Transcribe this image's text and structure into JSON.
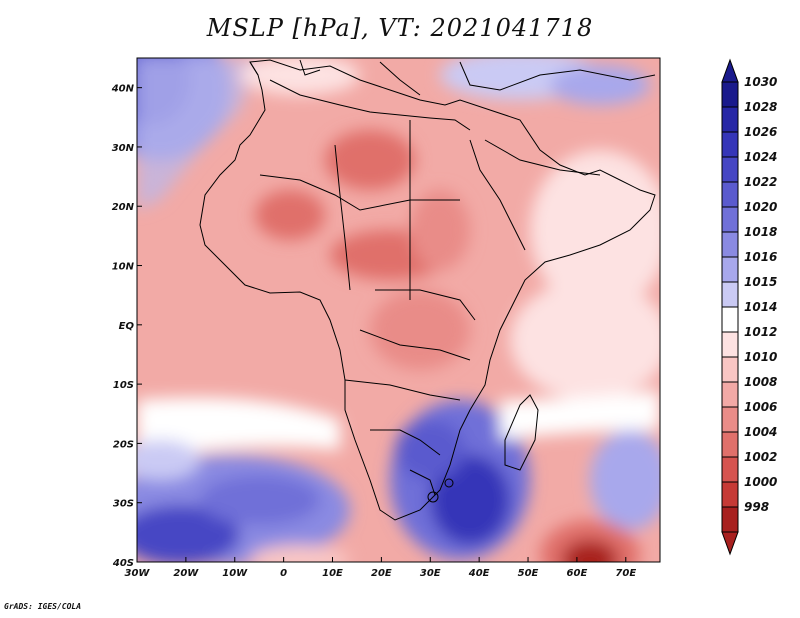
{
  "title": "MSLP [hPa], VT: 2021041718",
  "credit": "GrADS: IGES/COLA",
  "map": {
    "projection": "lat-lon",
    "lon_range": [
      -30,
      77
    ],
    "lat_range": [
      -40,
      45
    ],
    "lon_ticks": [
      {
        "value": -30,
        "label": "30W"
      },
      {
        "value": -20,
        "label": "20W"
      },
      {
        "value": -10,
        "label": "10W"
      },
      {
        "value": 0,
        "label": "0"
      },
      {
        "value": 10,
        "label": "10E"
      },
      {
        "value": 20,
        "label": "20E"
      },
      {
        "value": 30,
        "label": "30E"
      },
      {
        "value": 40,
        "label": "40E"
      },
      {
        "value": 50,
        "label": "50E"
      },
      {
        "value": 60,
        "label": "60E"
      },
      {
        "value": 70,
        "label": "70E"
      }
    ],
    "lat_ticks": [
      {
        "value": -40,
        "label": "40S"
      },
      {
        "value": -30,
        "label": "30S"
      },
      {
        "value": -20,
        "label": "20S"
      },
      {
        "value": -10,
        "label": "10S"
      },
      {
        "value": 0,
        "label": "EQ"
      },
      {
        "value": 10,
        "label": "10N"
      },
      {
        "value": 20,
        "label": "20N"
      },
      {
        "value": 30,
        "label": "30N"
      },
      {
        "value": 40,
        "label": "40N"
      }
    ],
    "features": {
      "high_south_atlantic": "blue",
      "high_south_indian": "blue",
      "low_southern_ocean_60E": "dark-red",
      "sahara_heat_low": "red"
    }
  },
  "colorbar": {
    "levels": [
      {
        "label": "1030",
        "color": "#1a1a8c"
      },
      {
        "label": "1028",
        "color": "#2727a6"
      },
      {
        "label": "1026",
        "color": "#3535b8"
      },
      {
        "label": "1024",
        "color": "#4646c4"
      },
      {
        "label": "1022",
        "color": "#5a5ace"
      },
      {
        "label": "1020",
        "color": "#7070d8"
      },
      {
        "label": "1018",
        "color": "#8a8ae2"
      },
      {
        "label": "1016",
        "color": "#a8a8ec"
      },
      {
        "label": "1015",
        "color": "#cacaf4"
      },
      {
        "label": "1014",
        "color": "#ffffff"
      },
      {
        "label": "1012",
        "color": "#fde2e2"
      },
      {
        "label": "1010",
        "color": "#f9c6c4"
      },
      {
        "label": "1008",
        "color": "#f2a9a6"
      },
      {
        "label": "1006",
        "color": "#e98c88"
      },
      {
        "label": "1004",
        "color": "#e0706b"
      },
      {
        "label": "1002",
        "color": "#d65450"
      },
      {
        "label": "1000",
        "color": "#c63a36"
      },
      {
        "label": "998",
        "color": "#a8201f"
      }
    ]
  }
}
